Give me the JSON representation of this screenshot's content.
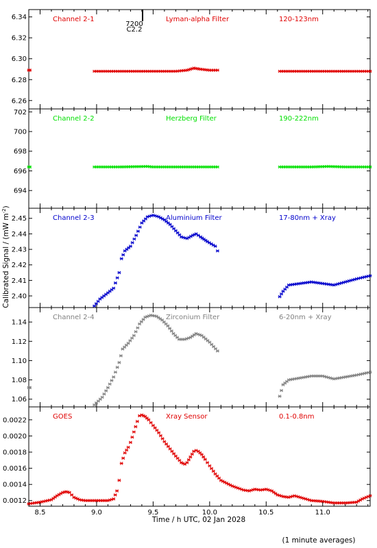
{
  "footer_note": "(1 minute averages)",
  "xlabel": "Time / h UTC, 02 Jan 2028",
  "ylabel": "Calibrated Signal / (mW m",
  "ylabel_sup": "-2",
  "ylabel_close": ")",
  "event_label_1": "7200",
  "event_label_2": "C2.2",
  "chart_data": [
    {
      "type": "scatter",
      "title": "Channel 2-1",
      "filter": "Lyman-alpha Filter",
      "band": "120-123nm",
      "color": "#e00000",
      "xlim": [
        8.4,
        11.42
      ],
      "ylim": [
        6.252,
        6.347
      ],
      "yticks": [
        6.26,
        6.28,
        6.3,
        6.32,
        6.34
      ],
      "ytick_labels": [
        "6.26",
        "6.28",
        "6.30",
        "6.32",
        "6.34"
      ],
      "series": [
        {
          "segments": [
            {
              "x": [
                8.4,
                8.41
              ],
              "y": [
                6.289,
                6.289
              ]
            },
            {
              "x": [
                8.98,
                9.2,
                9.4,
                9.6,
                9.7,
                9.8,
                9.86,
                9.92,
                10.0,
                10.07
              ],
              "y": [
                6.288,
                6.288,
                6.288,
                6.288,
                6.288,
                6.289,
                6.291,
                6.29,
                6.289,
                6.289
              ]
            },
            {
              "x": [
                10.62,
                10.8,
                11.0,
                11.2,
                11.42
              ],
              "y": [
                6.288,
                6.288,
                6.288,
                6.288,
                6.288
              ]
            }
          ]
        }
      ]
    },
    {
      "type": "scatter",
      "title": "Channel 2-2",
      "filter": "Herzberg Filter",
      "band": "190-222nm",
      "color": "#00e000",
      "xlim": [
        8.4,
        11.42
      ],
      "ylim": [
        692.2,
        702.3
      ],
      "yticks": [
        694,
        696,
        698,
        700,
        702
      ],
      "ytick_labels": [
        "694",
        "696",
        "698",
        "700",
        "702"
      ],
      "series": [
        {
          "segments": [
            {
              "x": [
                8.4,
                8.41
              ],
              "y": [
                696.4,
                696.4
              ]
            },
            {
              "x": [
                8.98,
                9.2,
                9.45,
                9.5,
                9.7,
                9.9,
                10.07
              ],
              "y": [
                696.4,
                696.4,
                696.45,
                696.4,
                696.4,
                696.4,
                696.4
              ]
            },
            {
              "x": [
                10.62,
                10.9,
                11.05,
                11.2,
                11.42
              ],
              "y": [
                696.4,
                696.4,
                696.45,
                696.4,
                696.4
              ]
            }
          ]
        }
      ]
    },
    {
      "type": "scatter",
      "title": "Channel 2-3",
      "filter": "Aluminium Filter",
      "band": "17-80nm + Xray",
      "color": "#0000cc",
      "xlim": [
        8.4,
        11.42
      ],
      "ylim": [
        2.3925,
        2.4565
      ],
      "yticks": [
        2.4,
        2.41,
        2.42,
        2.43,
        2.44,
        2.45
      ],
      "ytick_labels": [
        "2.40",
        "2.41",
        "2.42",
        "2.43",
        "2.44",
        "2.45"
      ],
      "series": [
        {
          "segments": [
            {
              "x": [
                8.98,
                9.03,
                9.1,
                9.15,
                9.2,
                9.22,
                9.25,
                9.3,
                9.35,
                9.4,
                9.45,
                9.5,
                9.55,
                9.6,
                9.65,
                9.7,
                9.75,
                9.8,
                9.85,
                9.88,
                9.92,
                9.98,
                10.05,
                10.07
              ],
              "y": [
                2.3935,
                2.398,
                2.402,
                2.405,
                2.415,
                2.424,
                2.429,
                2.432,
                2.439,
                2.447,
                2.451,
                2.452,
                2.451,
                2.449,
                2.446,
                2.442,
                2.438,
                2.437,
                2.439,
                2.44,
                2.438,
                2.435,
                2.432,
                2.429
              ]
            },
            {
              "x": [
                10.62,
                10.65,
                10.7,
                10.8,
                10.9,
                11.0,
                11.1,
                11.2,
                11.3,
                11.42
              ],
              "y": [
                2.3995,
                2.403,
                2.407,
                2.408,
                2.409,
                2.408,
                2.407,
                2.409,
                2.411,
                2.413
              ]
            }
          ]
        }
      ]
    },
    {
      "type": "scatter",
      "title": "Channel 2-4",
      "filter": "Zirconium Filter",
      "band": "6-20nm + Xray",
      "color": "#808080",
      "xlim": [
        8.4,
        11.42
      ],
      "ylim": [
        1.052,
        1.155
      ],
      "yticks": [
        1.06,
        1.08,
        1.1,
        1.12,
        1.14
      ],
      "ytick_labels": [
        "1.06",
        "1.08",
        "1.10",
        "1.12",
        "1.14"
      ],
      "series": [
        {
          "segments": [
            {
              "x": [
                8.4,
                8.41
              ],
              "y": [
                1.072,
                1.072
              ]
            },
            {
              "x": [
                8.98,
                9.05,
                9.1,
                9.15,
                9.2,
                9.23,
                9.28,
                9.33,
                9.38,
                9.43,
                9.48,
                9.53,
                9.58,
                9.63,
                9.68,
                9.73,
                9.78,
                9.83,
                9.88,
                9.93,
                10.0,
                10.07
              ],
              "y": [
                1.054,
                1.062,
                1.072,
                1.083,
                1.098,
                1.112,
                1.118,
                1.126,
                1.138,
                1.145,
                1.147,
                1.146,
                1.142,
                1.136,
                1.128,
                1.122,
                1.122,
                1.124,
                1.128,
                1.126,
                1.119,
                1.11
              ]
            },
            {
              "x": [
                10.62,
                10.65,
                10.7,
                10.8,
                10.9,
                11.0,
                11.1,
                11.2,
                11.3,
                11.42
              ],
              "y": [
                1.063,
                1.075,
                1.08,
                1.082,
                1.084,
                1.084,
                1.081,
                1.083,
                1.085,
                1.088
              ]
            }
          ]
        }
      ]
    },
    {
      "type": "scatter",
      "title": "GOES",
      "filter": "Xray Sensor",
      "band": "0.1-0.8nm",
      "color": "#e00000",
      "xlim": [
        8.4,
        11.42
      ],
      "xticks": [
        8.5,
        9.0,
        9.5,
        10.0,
        10.5,
        11.0
      ],
      "xtick_labels": [
        "8.5",
        "9.0",
        "9.5",
        "10.0",
        "10.5",
        "11.0"
      ],
      "ylim": [
        0.00113,
        0.00236
      ],
      "yticks": [
        0.0012,
        0.0014,
        0.0016,
        0.0018,
        0.002,
        0.0022
      ],
      "ytick_labels": [
        "0.0012",
        "0.0014",
        "0.0016",
        "0.0018",
        "0.0020",
        "0.0022"
      ],
      "series": [
        {
          "segments": [
            {
              "x": [
                8.4,
                8.5,
                8.6,
                8.65,
                8.7,
                8.73,
                8.76,
                8.8,
                8.85,
                8.9,
                9.0,
                9.1,
                9.15,
                9.18,
                9.2,
                9.22,
                9.25,
                9.28,
                9.3,
                9.33,
                9.36,
                9.38,
                9.4,
                9.43,
                9.46,
                9.5,
                9.55,
                9.6,
                9.65,
                9.7,
                9.75,
                9.78,
                9.8,
                9.83,
                9.86,
                9.88,
                9.9,
                9.93,
                9.96,
                10.0,
                10.05,
                10.1,
                10.2,
                10.3,
                10.35,
                10.4,
                10.45,
                10.5,
                10.55,
                10.6,
                10.65,
                10.7,
                10.75,
                10.8,
                10.9,
                11.0,
                11.1,
                11.2,
                11.3,
                11.35,
                11.42
              ],
              "y": [
                0.00116,
                0.00118,
                0.00121,
                0.00126,
                0.0013,
                0.00131,
                0.0013,
                0.00124,
                0.00121,
                0.0012,
                0.0012,
                0.0012,
                0.00122,
                0.00132,
                0.00145,
                0.00166,
                0.00179,
                0.00186,
                0.00192,
                0.00205,
                0.00218,
                0.00225,
                0.00226,
                0.00224,
                0.0022,
                0.00213,
                0.00204,
                0.00193,
                0.00184,
                0.00175,
                0.00167,
                0.00165,
                0.00167,
                0.00174,
                0.00181,
                0.00182,
                0.00181,
                0.00177,
                0.00171,
                0.00163,
                0.00153,
                0.00145,
                0.00138,
                0.00133,
                0.00132,
                0.00134,
                0.00133,
                0.00134,
                0.00132,
                0.00127,
                0.00125,
                0.00124,
                0.00126,
                0.00124,
                0.0012,
                0.00119,
                0.00117,
                0.00117,
                0.00118,
                0.00122,
                0.00126
              ]
            }
          ]
        }
      ]
    }
  ]
}
